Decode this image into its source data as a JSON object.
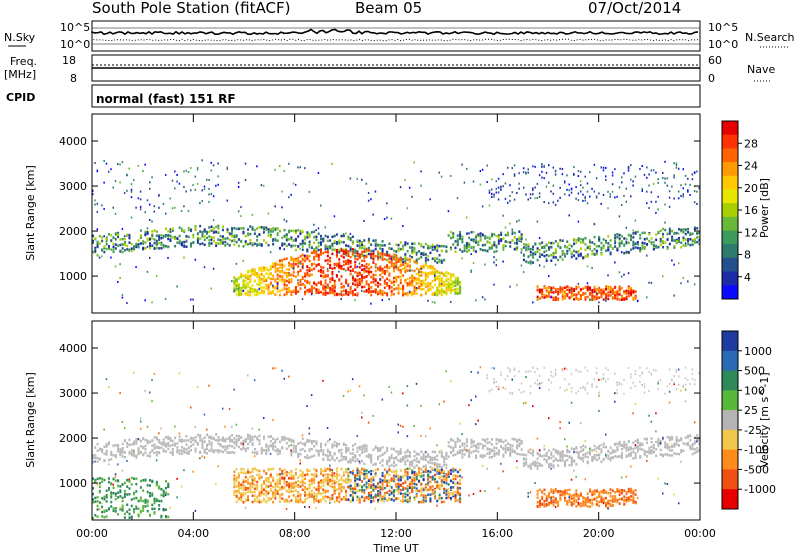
{
  "header": {
    "station": "South Pole Station (fitACF)",
    "beam": "Beam 05",
    "date": "07/Oct/2014"
  },
  "noise_panel": {
    "left_label": "N.Sky",
    "right_label": "N.Search",
    "left_ticks": [
      "10^5",
      "10^0"
    ],
    "right_ticks": [
      "10^5",
      "10^0"
    ]
  },
  "freq_panel": {
    "left_label_1": "Freq.",
    "left_label_2": "[MHz]",
    "right_label": "Nave",
    "left_ticks": [
      "18",
      "8"
    ],
    "right_ticks": [
      "60",
      "0"
    ],
    "cpid_label": "CPID",
    "cpid_value": "normal (fast) 151 RF"
  },
  "chart_data": [
    {
      "type": "heatmap",
      "title": "",
      "ylabel": "Slant Range [km]",
      "xlabel": "",
      "ylim": [
        180,
        4600
      ],
      "y_ticks": [
        "4000",
        "3000",
        "2000",
        "1000"
      ],
      "colorbar_label": "Power [dB]",
      "colorbar_ticks": [
        "28",
        "24",
        "20",
        "16",
        "12",
        "8",
        "4"
      ],
      "colorbar_colors": [
        "#e60000",
        "#ff3200",
        "#ff6400",
        "#ff9a00",
        "#ffc800",
        "#e6e600",
        "#a8d000",
        "#6ab83a",
        "#3c9a5a",
        "#2e7a6e",
        "#24508e",
        "#1c2aa6",
        "#0a0aff"
      ],
      "bands": [
        {
          "t": [
            0.0,
            24.0
          ],
          "r": [
            1550,
            1850
          ],
          "v": 12,
          "note": "persistent green-blue band"
        },
        {
          "t": [
            6.0,
            14.5
          ],
          "r": [
            600,
            1400
          ],
          "v": 28,
          "note": "strong red echoes"
        },
        {
          "t": [
            17.5,
            21.5
          ],
          "r": [
            500,
            800
          ],
          "v": 26
        }
      ]
    },
    {
      "type": "heatmap",
      "title": "",
      "ylabel": "Slant Range [km]",
      "xlabel": "Time UT",
      "ylim": [
        180,
        4600
      ],
      "y_ticks": [
        "4000",
        "3000",
        "2000",
        "1000"
      ],
      "x_ticks": [
        "00:00",
        "04:00",
        "08:00",
        "12:00",
        "16:00",
        "20:00",
        "00:00"
      ],
      "colorbar_label": "Velocity [m s^-1]",
      "colorbar_ticks": [
        "1000",
        "500",
        "100",
        "25",
        "-25",
        "-100",
        "-500",
        "-1000"
      ],
      "colorbar_colors": [
        "#1e3ca0",
        "#2a6ab4",
        "#2e8a5a",
        "#58b83a",
        "#b4b4b4",
        "#f0c84a",
        "#ff8c1a",
        "#f05014",
        "#e60000"
      ],
      "bands": [
        {
          "t": [
            0.0,
            24.0
          ],
          "r": [
            1500,
            1900
          ],
          "v": 0,
          "note": "grey ground scatter"
        },
        {
          "t": [
            6.0,
            14.5
          ],
          "r": [
            600,
            1300
          ],
          "v": -400
        },
        {
          "t": [
            17.5,
            21.5
          ],
          "r": [
            500,
            900
          ],
          "v": -500
        }
      ]
    }
  ]
}
